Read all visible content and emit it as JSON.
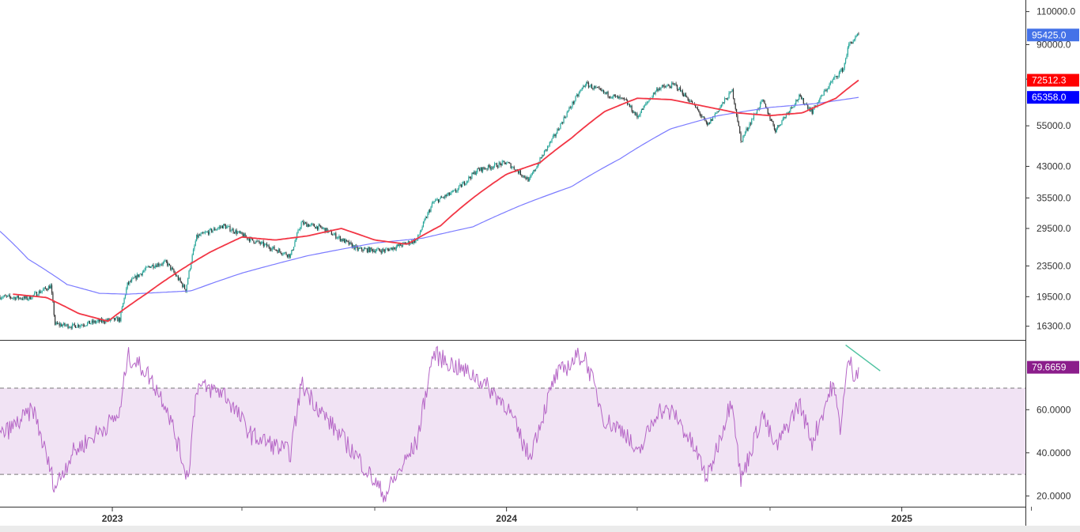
{
  "colors": {
    "candle_up": "#26a69a",
    "candle_down": "#333333",
    "ma_fast": "#f23645",
    "ma_slow": "#7b7bff",
    "rsi_line": "#b565c6",
    "rsi_band": "#f1e3f4",
    "trendline": "#4fc3a1",
    "price_tag": "#4472e8",
    "ma_fast_tag": "#ff0000",
    "ma_slow_tag": "#0000ff",
    "rsi_tag": "#8b1d8b"
  },
  "chart_data": [
    {
      "type": "candlestick",
      "title": "",
      "y_scale": "log",
      "ylim": [
        15000,
        118000
      ],
      "y_ticks": [
        "16300.0",
        "19500.0",
        "23500.0",
        "29500.0",
        "35500.0",
        "43000.0",
        "55000.0",
        "73000.0",
        "90000.0",
        "110000.0"
      ],
      "x_range": [
        "2022-09-19",
        "2025-06-15"
      ],
      "x_tick_labels": [
        "2023",
        "2024",
        "2025"
      ],
      "last_price_label": "95425.0",
      "price_path": [
        [
          "2022-09-19",
          19500
        ],
        [
          "2022-10-15",
          19300
        ],
        [
          "2022-11-05",
          20800
        ],
        [
          "2022-11-09",
          16500
        ],
        [
          "2022-11-25",
          16300
        ],
        [
          "2022-12-20",
          16800
        ],
        [
          "2023-01-08",
          17000
        ],
        [
          "2023-01-15",
          21000
        ],
        [
          "2023-02-05",
          23500
        ],
        [
          "2023-02-20",
          24000
        ],
        [
          "2023-03-10",
          20300
        ],
        [
          "2023-03-20",
          28000
        ],
        [
          "2023-04-14",
          30000
        ],
        [
          "2023-05-10",
          27500
        ],
        [
          "2023-06-15",
          25000
        ],
        [
          "2023-06-25",
          30500
        ],
        [
          "2023-07-15",
          29500
        ],
        [
          "2023-08-16",
          26000
        ],
        [
          "2023-09-10",
          25800
        ],
        [
          "2023-10-10",
          27500
        ],
        [
          "2023-10-25",
          34500
        ],
        [
          "2023-11-15",
          37000
        ],
        [
          "2023-12-05",
          42000
        ],
        [
          "2024-01-01",
          44000
        ],
        [
          "2024-01-22",
          39500
        ],
        [
          "2024-02-15",
          52000
        ],
        [
          "2024-03-14",
          71000
        ],
        [
          "2024-04-01",
          67000
        ],
        [
          "2024-04-20",
          64000
        ],
        [
          "2024-05-01",
          58000
        ],
        [
          "2024-05-20",
          69000
        ],
        [
          "2024-06-05",
          70500
        ],
        [
          "2024-06-25",
          61000
        ],
        [
          "2024-07-05",
          55000
        ],
        [
          "2024-07-28",
          68000
        ],
        [
          "2024-08-05",
          50000
        ],
        [
          "2024-08-25",
          64000
        ],
        [
          "2024-09-06",
          53500
        ],
        [
          "2024-09-28",
          65500
        ],
        [
          "2024-10-10",
          60000
        ],
        [
          "2024-10-29",
          72500
        ],
        [
          "2024-11-08",
          78000
        ],
        [
          "2024-11-13",
          90000
        ],
        [
          "2024-11-22",
          95425
        ]
      ],
      "series": [
        {
          "name": "",
          "last_label": "72512.3",
          "values": [
            [
              "2022-10-01",
              19800
            ],
            [
              "2022-11-01",
              19400
            ],
            [
              "2022-12-01",
              17600
            ],
            [
              "2022-12-28",
              16800
            ],
            [
              "2023-02-01",
              19800
            ],
            [
              "2023-03-01",
              22500
            ],
            [
              "2023-04-01",
              25500
            ],
            [
              "2023-05-01",
              28000
            ],
            [
              "2023-06-01",
              27500
            ],
            [
              "2023-07-01",
              28200
            ],
            [
              "2023-08-01",
              29500
            ],
            [
              "2023-09-01",
              27500
            ],
            [
              "2023-10-01",
              26800
            ],
            [
              "2023-11-01",
              30000
            ],
            [
              "2023-12-01",
              35500
            ],
            [
              "2024-01-01",
              41000
            ],
            [
              "2024-02-01",
              44000
            ],
            [
              "2024-03-01",
              51000
            ],
            [
              "2024-04-01",
              60000
            ],
            [
              "2024-05-01",
              65000
            ],
            [
              "2024-06-01",
              64500
            ],
            [
              "2024-07-01",
              62000
            ],
            [
              "2024-08-01",
              59500
            ],
            [
              "2024-09-01",
              58500
            ],
            [
              "2024-10-01",
              59500
            ],
            [
              "2024-11-01",
              65000
            ],
            [
              "2024-11-22",
              72512.3
            ]
          ]
        },
        {
          "name": "",
          "last_label": "65358.0",
          "values": [
            [
              "2022-09-19",
              29000
            ],
            [
              "2022-10-15",
              24500
            ],
            [
              "2022-11-20",
              21000
            ],
            [
              "2022-12-20",
              19900
            ],
            [
              "2023-01-15",
              19800
            ],
            [
              "2023-03-15",
              20200
            ],
            [
              "2023-05-01",
              22500
            ],
            [
              "2023-07-01",
              25000
            ],
            [
              "2023-09-01",
              27000
            ],
            [
              "2023-10-15",
              27800
            ],
            [
              "2023-12-01",
              29800
            ],
            [
              "2024-01-15",
              34000
            ],
            [
              "2024-03-01",
              38000
            ],
            [
              "2024-04-15",
              45000
            ],
            [
              "2024-06-01",
              54000
            ],
            [
              "2024-07-15",
              58500
            ],
            [
              "2024-09-01",
              61500
            ],
            [
              "2024-10-15",
              63000
            ],
            [
              "2024-11-22",
              65358
            ]
          ]
        }
      ]
    },
    {
      "type": "line",
      "title": "",
      "ylim": [
        15,
        92
      ],
      "y_ticks": [
        "20.0000",
        "40.0000",
        "60.0000"
      ],
      "band": [
        30,
        70
      ],
      "last_label": "79.6659",
      "series": [
        {
          "name": "",
          "values": [
            [
              "2022-09-19",
              48
            ],
            [
              "2022-10-01",
              52
            ],
            [
              "2022-10-20",
              60
            ],
            [
              "2022-11-09",
              24
            ],
            [
              "2022-11-25",
              40
            ],
            [
              "2022-12-20",
              50
            ],
            [
              "2023-01-08",
              58
            ],
            [
              "2023-01-15",
              85
            ],
            [
              "2023-02-01",
              78
            ],
            [
              "2023-02-20",
              62
            ],
            [
              "2023-03-12",
              28
            ],
            [
              "2023-03-20",
              71
            ],
            [
              "2023-04-14",
              68
            ],
            [
              "2023-05-10",
              48
            ],
            [
              "2023-06-15",
              40
            ],
            [
              "2023-06-25",
              72
            ],
            [
              "2023-07-15",
              58
            ],
            [
              "2023-08-16",
              38
            ],
            [
              "2023-09-10",
              20
            ],
            [
              "2023-10-10",
              45
            ],
            [
              "2023-10-25",
              86
            ],
            [
              "2023-11-15",
              80
            ],
            [
              "2023-12-05",
              75
            ],
            [
              "2024-01-01",
              62
            ],
            [
              "2024-01-22",
              38
            ],
            [
              "2024-02-15",
              75
            ],
            [
              "2024-03-08",
              85
            ],
            [
              "2024-03-14",
              84
            ],
            [
              "2024-04-01",
              55
            ],
            [
              "2024-04-20",
              50
            ],
            [
              "2024-05-01",
              38
            ],
            [
              "2024-05-20",
              60
            ],
            [
              "2024-06-05",
              58
            ],
            [
              "2024-06-25",
              40
            ],
            [
              "2024-07-05",
              28
            ],
            [
              "2024-07-28",
              66
            ],
            [
              "2024-08-05",
              27
            ],
            [
              "2024-08-25",
              58
            ],
            [
              "2024-09-06",
              42
            ],
            [
              "2024-09-28",
              63
            ],
            [
              "2024-10-10",
              45
            ],
            [
              "2024-10-29",
              72
            ],
            [
              "2024-11-05",
              52
            ],
            [
              "2024-11-13",
              84
            ],
            [
              "2024-11-18",
              76
            ],
            [
              "2024-11-22",
              79.6659
            ]
          ]
        }
      ],
      "trendline": [
        [
          "2024-11-10",
          90
        ],
        [
          "2024-12-12",
          78
        ]
      ]
    }
  ]
}
